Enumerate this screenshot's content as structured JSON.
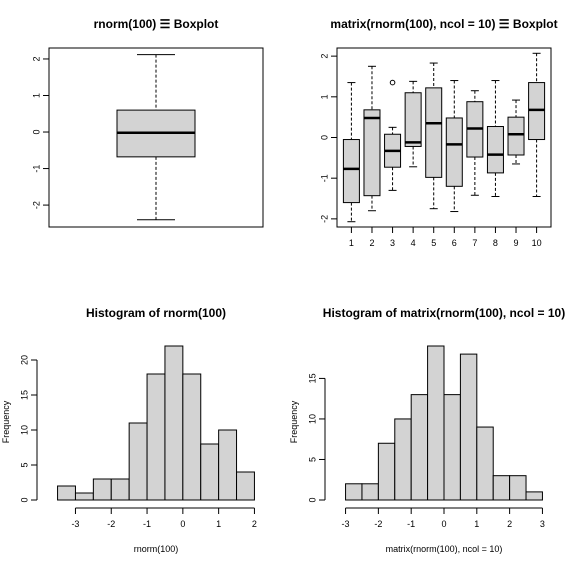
{
  "chart_data": [
    {
      "type": "boxplot",
      "title": "rnorm(100) ☰ Boxplot",
      "ylim": [
        -2.6,
        2.3
      ],
      "yticks": [
        -2,
        -1,
        0,
        1,
        2
      ],
      "yticklabels": [
        "-2",
        "-1",
        "0",
        "1",
        "2"
      ],
      "boxes": [
        {
          "label": "",
          "lower_whisker": -2.4,
          "q1": -0.68,
          "median": -0.02,
          "q3": 0.6,
          "upper_whisker": 2.12,
          "outliers": []
        }
      ]
    },
    {
      "type": "boxplot",
      "title": "matrix(rnorm(100), ncol = 10) ☰ Boxplot",
      "ylim": [
        -2.2,
        2.2
      ],
      "yticks": [
        -2,
        -1,
        0,
        1,
        2
      ],
      "yticklabels": [
        "-2",
        "-1",
        "0",
        "1",
        "2"
      ],
      "categories": [
        "1",
        "2",
        "3",
        "4",
        "5",
        "6",
        "7",
        "8",
        "9",
        "10"
      ],
      "boxes": [
        {
          "label": "1",
          "lower_whisker": -2.07,
          "q1": -1.6,
          "median": -0.77,
          "q3": -0.05,
          "upper_whisker": 1.35,
          "outliers": []
        },
        {
          "label": "2",
          "lower_whisker": -1.8,
          "q1": -1.43,
          "median": 0.48,
          "q3": 0.68,
          "upper_whisker": 1.75,
          "outliers": []
        },
        {
          "label": "3",
          "lower_whisker": -1.3,
          "q1": -0.73,
          "median": -0.33,
          "q3": 0.08,
          "upper_whisker": 0.25,
          "outliers": [
            1.35
          ]
        },
        {
          "label": "4",
          "lower_whisker": -0.72,
          "q1": -0.22,
          "median": -0.12,
          "q3": 1.1,
          "upper_whisker": 1.38,
          "outliers": []
        },
        {
          "label": "5",
          "lower_whisker": -1.75,
          "q1": -0.98,
          "median": 0.35,
          "q3": 1.22,
          "upper_whisker": 1.83,
          "outliers": []
        },
        {
          "label": "6",
          "lower_whisker": -1.82,
          "q1": -1.2,
          "median": -0.17,
          "q3": 0.48,
          "upper_whisker": 1.4,
          "outliers": []
        },
        {
          "label": "7",
          "lower_whisker": -1.42,
          "q1": -0.48,
          "median": 0.22,
          "q3": 0.88,
          "upper_whisker": 1.15,
          "outliers": []
        },
        {
          "label": "8",
          "lower_whisker": -1.45,
          "q1": -0.87,
          "median": -0.42,
          "q3": 0.27,
          "upper_whisker": 1.4,
          "outliers": []
        },
        {
          "label": "9",
          "lower_whisker": -0.65,
          "q1": -0.43,
          "median": 0.08,
          "q3": 0.5,
          "upper_whisker": 0.92,
          "outliers": []
        },
        {
          "label": "10",
          "lower_whisker": -1.45,
          "q1": -0.05,
          "median": 0.68,
          "q3": 1.35,
          "upper_whisker": 2.07,
          "outliers": []
        }
      ]
    },
    {
      "type": "bar",
      "title": "Histogram of rnorm(100)",
      "xlabel": "rnorm(100)",
      "ylabel": "Frequency",
      "bin_edges": [
        -3.5,
        -3.0,
        -2.5,
        -2.0,
        -1.5,
        -1.0,
        -0.5,
        0.0,
        0.5,
        1.0,
        1.5,
        2.0
      ],
      "values": [
        2,
        1,
        3,
        3,
        11,
        18,
        22,
        18,
        8,
        10,
        4
      ],
      "xlim": [
        -3.5,
        2.0
      ],
      "ylim": [
        0,
        22
      ],
      "xticks": [
        -3,
        -2,
        -1,
        0,
        1,
        2
      ],
      "xticklabels": [
        "-3",
        "-2",
        "-1",
        "0",
        "1",
        "2"
      ],
      "yticks": [
        0,
        5,
        10,
        15,
        20
      ],
      "yticklabels": [
        "0",
        "5",
        "10",
        "15",
        "20"
      ]
    },
    {
      "type": "bar",
      "title": "Histogram of matrix(rnorm(100), ncol = 10)",
      "xlabel": "matrix(rnorm(100), ncol = 10)",
      "ylabel": "Frequency",
      "bin_edges": [
        -3.0,
        -2.5,
        -2.0,
        -1.5,
        -1.0,
        -0.5,
        0.0,
        0.5,
        1.0,
        1.5,
        2.0,
        2.5,
        3.0
      ],
      "values": [
        2,
        2,
        7,
        10,
        13,
        19,
        13,
        18,
        9,
        3,
        3,
        1
      ],
      "xlim": [
        -3.0,
        3.0
      ],
      "ylim": [
        0,
        19
      ],
      "xticks": [
        -3,
        -2,
        -1,
        0,
        1,
        2,
        3
      ],
      "xticklabels": [
        "-3",
        "-2",
        "-1",
        "0",
        "1",
        "2",
        "3"
      ],
      "yticks": [
        0,
        5,
        10,
        15
      ],
      "yticklabels": [
        "0",
        "5",
        "10",
        "15"
      ]
    }
  ]
}
